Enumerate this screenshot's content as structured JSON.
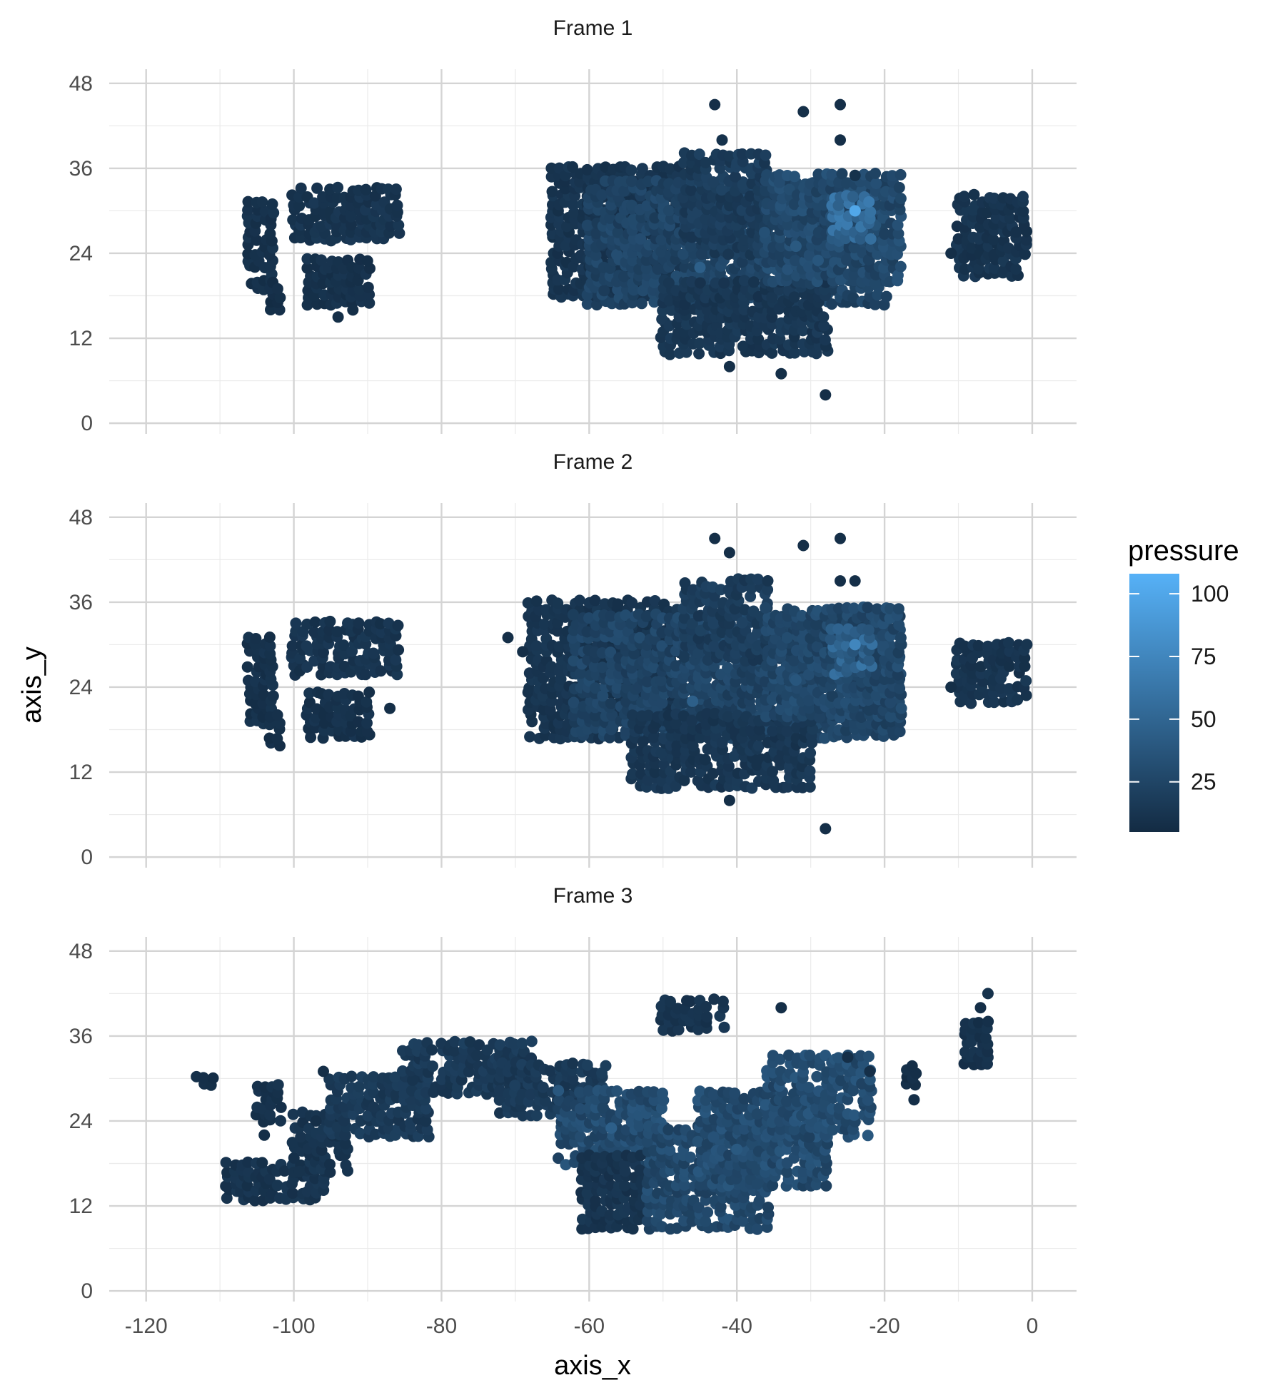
{
  "chart_data": {
    "type": "scatter",
    "facet_type": "vertical-panels",
    "xlabel": "axis_x",
    "ylabel": "axis_y",
    "xlim": [
      -125,
      6
    ],
    "ylim": [
      -1.5,
      50
    ],
    "x_ticks": [
      -120,
      -100,
      -80,
      -60,
      -40,
      -20,
      0
    ],
    "x_tick_labels": [
      "-120",
      "-100",
      "-80",
      "-60",
      "-40",
      "-20",
      "0"
    ],
    "y_ticks": [
      0,
      12,
      24,
      36,
      48
    ],
    "y_tick_labels": [
      "0",
      "12",
      "24",
      "36",
      "48"
    ],
    "grid": true,
    "color_scale": {
      "name": "pressure",
      "min": 5,
      "max": 108,
      "low_color": "#132B43",
      "high_color": "#56B1F7",
      "breaks": [
        25,
        50,
        75,
        100
      ],
      "break_labels": [
        "25",
        "50",
        "75",
        "100"
      ]
    },
    "panels": [
      {
        "title": "Frame 1",
        "clusters": [
          {
            "x": [
              -106,
              -103
            ],
            "y": [
              19,
              31
            ],
            "p": 10
          },
          {
            "x": [
              -103,
              -102
            ],
            "y": [
              16,
              20
            ],
            "p": 8
          },
          {
            "x": [
              -100,
              -86
            ],
            "y": [
              26,
              33
            ],
            "p": 12
          },
          {
            "x": [
              -98,
              -90
            ],
            "y": [
              17,
              23
            ],
            "p": 10
          },
          {
            "x": [
              -65,
              -48
            ],
            "y": [
              18,
              36
            ],
            "p": 12
          },
          {
            "x": [
              -60,
              -20
            ],
            "y": [
              17,
              34
            ],
            "p": 24
          },
          {
            "x": [
              -50,
              -28
            ],
            "y": [
              10,
              20
            ],
            "p": 14
          },
          {
            "x": [
              -47,
              -36
            ],
            "y": [
              24,
              38
            ],
            "p": 18
          },
          {
            "x": [
              -36,
              -18
            ],
            "y": [
              20,
              35
            ],
            "p": 28
          },
          {
            "x": [
              -27,
              -22
            ],
            "y": [
              26,
              32
            ],
            "p": 55
          },
          {
            "x": [
              -10,
              -1
            ],
            "y": [
              21,
              32
            ],
            "p": 12
          }
        ],
        "points": [
          [
            -43,
            45,
            8
          ],
          [
            -31,
            44,
            8
          ],
          [
            -26,
            45,
            8
          ],
          [
            -28,
            4,
            8
          ],
          [
            -41,
            8,
            8
          ],
          [
            -34,
            7,
            8
          ],
          [
            -42,
            40,
            10
          ],
          [
            -26,
            40,
            8
          ],
          [
            -24,
            35,
            10
          ],
          [
            -94,
            15,
            8
          ],
          [
            -92,
            16,
            8
          ],
          [
            -11,
            24,
            8
          ],
          [
            -24,
            30,
            100
          ],
          [
            -45,
            22,
            45
          ],
          [
            -32,
            25,
            40
          ],
          [
            -29,
            23,
            38
          ]
        ]
      },
      {
        "title": "Frame 2",
        "clusters": [
          {
            "x": [
              -106,
              -103
            ],
            "y": [
              19,
              31
            ],
            "p": 10
          },
          {
            "x": [
              -103,
              -102
            ],
            "y": [
              16,
              20
            ],
            "p": 8
          },
          {
            "x": [
              -100,
              -86
            ],
            "y": [
              26,
              33
            ],
            "p": 12
          },
          {
            "x": [
              -98,
              -90
            ],
            "y": [
              17,
              23
            ],
            "p": 10
          },
          {
            "x": [
              -68,
              -48
            ],
            "y": [
              17,
              36
            ],
            "p": 12
          },
          {
            "x": [
              -62,
              -18
            ],
            "y": [
              17,
              34
            ],
            "p": 24
          },
          {
            "x": [
              -54,
              -30
            ],
            "y": [
              10,
              20
            ],
            "p": 14
          },
          {
            "x": [
              -47,
              -36
            ],
            "y": [
              28,
              39
            ],
            "p": 18
          },
          {
            "x": [
              -36,
              -18
            ],
            "y": [
              20,
              35
            ],
            "p": 27
          },
          {
            "x": [
              -27,
              -22
            ],
            "y": [
              26,
              32
            ],
            "p": 48
          },
          {
            "x": [
              -10,
              -1
            ],
            "y": [
              22,
              30
            ],
            "p": 12
          }
        ],
        "points": [
          [
            -43,
            45,
            8
          ],
          [
            -31,
            44,
            8
          ],
          [
            -26,
            45,
            8
          ],
          [
            -28,
            4,
            8
          ],
          [
            -41,
            8,
            8
          ],
          [
            -71,
            31,
            8
          ],
          [
            -69,
            29,
            8
          ],
          [
            -41,
            43,
            8
          ],
          [
            -26,
            39,
            8
          ],
          [
            -24,
            39,
            8
          ],
          [
            -11,
            24,
            8
          ],
          [
            -87,
            21,
            8
          ],
          [
            -24,
            30,
            75
          ],
          [
            -46,
            22,
            45
          ],
          [
            -32,
            25,
            38
          ]
        ]
      },
      {
        "title": "Frame 3",
        "clusters": [
          {
            "x": [
              -113,
              -111
            ],
            "y": [
              29,
              30
            ],
            "p": 8
          },
          {
            "x": [
              -105,
              -102
            ],
            "y": [
              24,
              29
            ],
            "p": 10
          },
          {
            "x": [
              -109,
              -96
            ],
            "y": [
              13,
              18
            ],
            "p": 12
          },
          {
            "x": [
              -100,
              -93
            ],
            "y": [
              17,
              25
            ],
            "p": 12
          },
          {
            "x": [
              -95,
              -82
            ],
            "y": [
              22,
              30
            ],
            "p": 16
          },
          {
            "x": [
              -85,
              -68
            ],
            "y": [
              28,
              35
            ],
            "p": 16
          },
          {
            "x": [
              -72,
              -58
            ],
            "y": [
              25,
              32
            ],
            "p": 16
          },
          {
            "x": [
              -64,
              -50
            ],
            "y": [
              18,
              28
            ],
            "p": 30
          },
          {
            "x": [
              -61,
              -53
            ],
            "y": [
              9,
              19
            ],
            "p": 12
          },
          {
            "x": [
              -52,
              -36
            ],
            "y": [
              9,
              23
            ],
            "p": 28
          },
          {
            "x": [
              -45,
              -28
            ],
            "y": [
              15,
              28
            ],
            "p": 30
          },
          {
            "x": [
              -36,
              -22
            ],
            "y": [
              22,
              33
            ],
            "p": 30
          },
          {
            "x": [
              -50,
              -42
            ],
            "y": [
              37,
              41
            ],
            "p": 12
          },
          {
            "x": [
              -17,
              -16
            ],
            "y": [
              29,
              32
            ],
            "p": 8
          },
          {
            "x": [
              -9,
              -6
            ],
            "y": [
              32,
              38
            ],
            "p": 10
          }
        ],
        "points": [
          [
            -6,
            42,
            10
          ],
          [
            -7,
            40,
            8
          ],
          [
            -16,
            27,
            8
          ],
          [
            -96,
            31,
            8
          ],
          [
            -97,
            24,
            8
          ],
          [
            -104,
            22,
            8
          ],
          [
            -22,
            31,
            8
          ],
          [
            -25,
            33,
            8
          ],
          [
            -34,
            40,
            8
          ],
          [
            -57,
            23,
            45
          ],
          [
            -40,
            20,
            40
          ]
        ]
      }
    ]
  }
}
